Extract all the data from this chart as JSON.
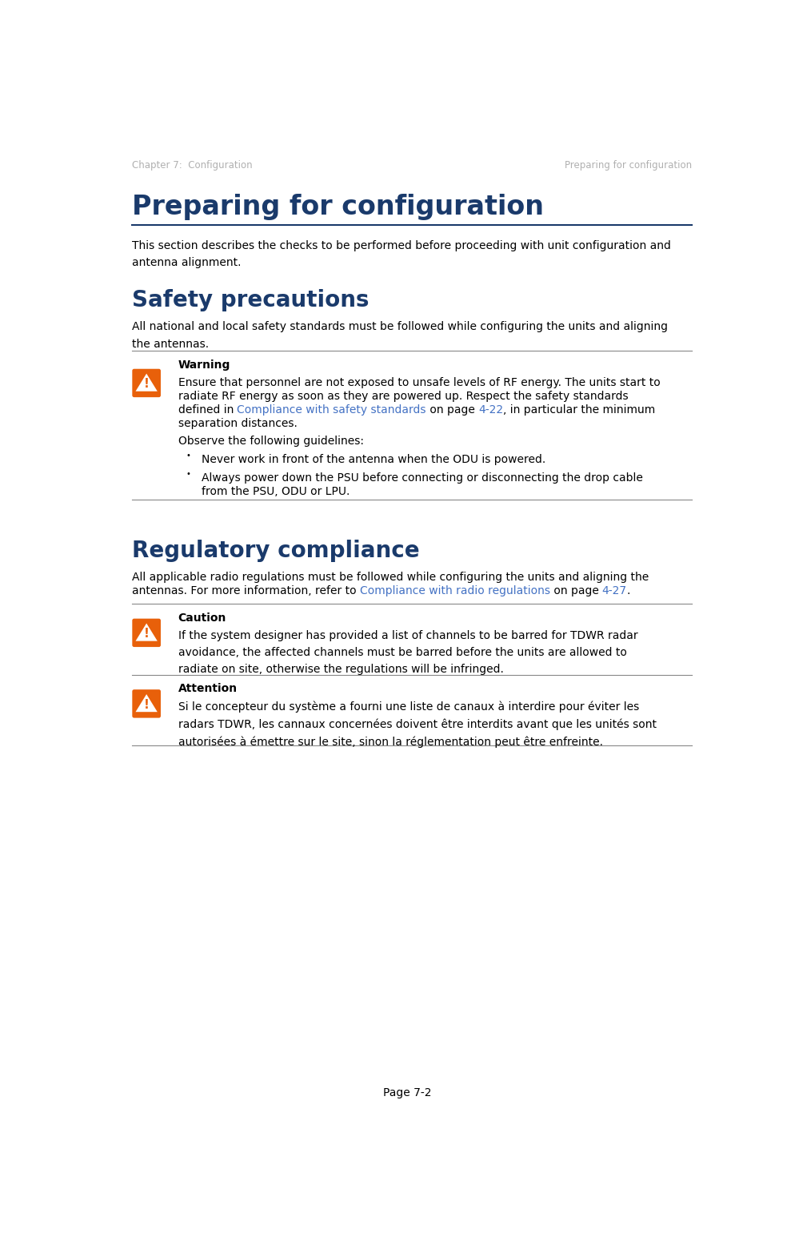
{
  "page_width": 9.94,
  "page_height": 15.55,
  "bg_color": "#ffffff",
  "header_left": "Chapter 7:  Configuration",
  "header_right": "Preparing for configuration",
  "header_color": "#b0b0b0",
  "header_fontsize": 8.5,
  "main_title": "Preparing for configuration",
  "main_title_color": "#1a3a6b",
  "main_title_fontsize": 24,
  "rule_color": "#1a3a6b",
  "intro_text": "This section describes the checks to be performed before proceeding with unit configuration and\nantenna alignment.",
  "intro_fontsize": 10,
  "intro_color": "#000000",
  "intro_linespacing": 1.65,
  "section1_title": "Safety precautions",
  "section1_title_color": "#1a3a6b",
  "section1_title_fontsize": 20,
  "section1_body": "All national and local safety standards must be followed while configuring the units and aligning\nthe antennas.",
  "section1_fontsize": 10,
  "section1_color": "#000000",
  "warning_label": "Warning",
  "warning_label_fontsize": 10,
  "warning_icon_color": "#e8600a",
  "warning_text_line1": "Ensure that personnel are not exposed to unsafe levels of RF energy. The units start to",
  "warning_text_line2": "radiate RF energy as soon as they are powered up. Respect the safety standards",
  "warning_text_line3_pre": "defined in ",
  "warning_text_line3_link": "Compliance with safety standards",
  "warning_text_line3_mid": " on page ",
  "warning_text_line3_page": "4-22",
  "warning_text_line3_post": ", in particular the minimum",
  "warning_text_line4": "separation distances.",
  "warning_text_line5": "Observe the following guidelines:",
  "warning_bullet1": "Never work in front of the antenna when the ODU is powered.",
  "warning_bullet2_line1": "Always power down the PSU before connecting or disconnecting the drop cable",
  "warning_bullet2_line2": "from the PSU, ODU or LPU.",
  "warning_fontsize": 10,
  "warning_link_color": "#4472c4",
  "warning_text_color": "#000000",
  "section2_title": "Regulatory compliance",
  "section2_title_color": "#1a3a6b",
  "section2_title_fontsize": 20,
  "sec2_line1": "All applicable radio regulations must be followed while configuring the units and aligning the",
  "sec2_line2_pre": "antennas. For more information, refer to ",
  "sec2_line2_link": "Compliance with radio regulations",
  "sec2_line2_mid": " on page ",
  "sec2_line2_page": "4-27",
  "sec2_line2_post": ".",
  "section2_fontsize": 10,
  "section2_color": "#000000",
  "caution_label": "Caution",
  "caution_text": "If the system designer has provided a list of channels to be barred for TDWR radar\navoidance, the affected channels must be barred before the units are allowed to\nradiate on site, otherwise the regulations will be infringed.",
  "caution_fontsize": 10,
  "attention_label": "Attention",
  "attention_text": "Si le concepteur du système a fourni une liste de canaux à interdire pour éviter les\nradars TDWR, les cannaux concernées doivent être interdits avant que les unités sont\nautorisées à émettre sur le site, sinon la réglementation peut être enfreinte.",
  "attention_fontsize": 10,
  "footer_text": "Page 7-2",
  "footer_fontsize": 10,
  "footer_color": "#000000",
  "line_sep_color": "#888888",
  "box_line_color": "#888888"
}
